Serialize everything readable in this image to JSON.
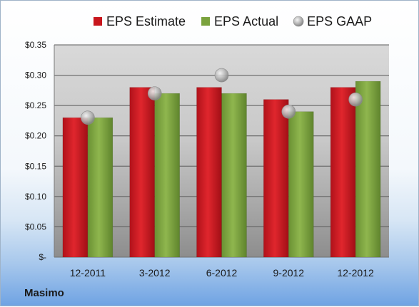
{
  "company": "Masimo",
  "chart_data": {
    "type": "bar",
    "categories": [
      "12-2011",
      "3-2012",
      "6-2012",
      "9-2012",
      "12-2012"
    ],
    "series": [
      {
        "name": "EPS Estimate",
        "kind": "bar",
        "color": "#c8161d",
        "values": [
          0.23,
          0.28,
          0.28,
          0.26,
          0.28
        ]
      },
      {
        "name": "EPS Actual",
        "kind": "bar",
        "color": "#7aa23d",
        "values": [
          0.23,
          0.27,
          0.27,
          0.24,
          0.29
        ]
      },
      {
        "name": "EPS GAAP",
        "kind": "marker",
        "color": "#a9a9a9",
        "values": [
          0.23,
          0.27,
          0.3,
          0.24,
          0.26
        ]
      }
    ],
    "yticks": [
      "$-",
      "$0.05",
      "$0.10",
      "$0.15",
      "$0.20",
      "$0.25",
      "$0.30",
      "$0.35"
    ],
    "ylim": [
      0,
      0.35
    ],
    "grid": true,
    "legend_position": "top"
  }
}
